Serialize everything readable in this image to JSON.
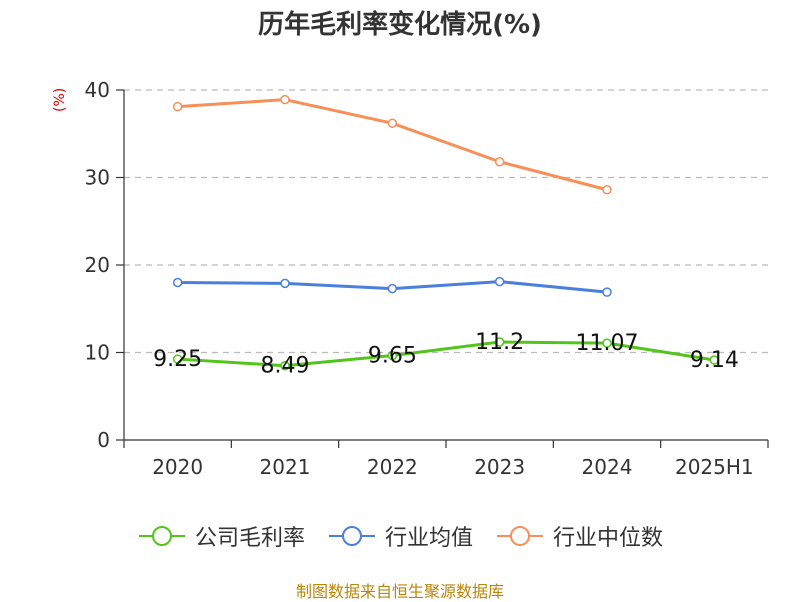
{
  "chart_data": {
    "type": "line",
    "title": "历年毛利率变化情况(%)",
    "ylabel": "(%)",
    "xlabel": "",
    "categories": [
      "2020",
      "2021",
      "2022",
      "2023",
      "2024",
      "2025H1"
    ],
    "ylim": [
      0,
      40
    ],
    "yticks": [
      0,
      10,
      20,
      30,
      40
    ],
    "grid": true,
    "legend_position": "bottom",
    "series": [
      {
        "name": "公司毛利率",
        "color": "#52c41a",
        "values": [
          9.25,
          8.49,
          9.65,
          11.2,
          11.07,
          9.14
        ],
        "data_labels": [
          "9.25",
          "8.49",
          "9.65",
          "11.2",
          "11.07",
          "9.14"
        ]
      },
      {
        "name": "行业均值",
        "color": "#4a7fdb",
        "values": [
          18.0,
          17.9,
          17.3,
          18.1,
          16.9,
          null
        ]
      },
      {
        "name": "行业中位数",
        "color": "#f79058",
        "values": [
          38.1,
          38.9,
          36.2,
          31.8,
          28.6,
          null
        ]
      }
    ]
  },
  "source": "制图数据来自恒生聚源数据库"
}
